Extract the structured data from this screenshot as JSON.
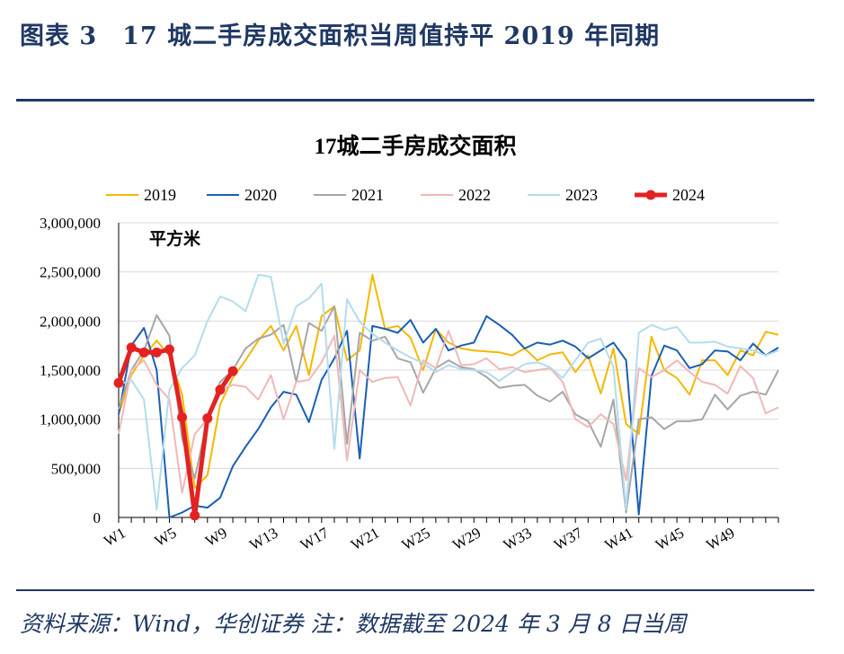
{
  "figure_title": "图表 3　17 城二手房成交面积当周值持平 2019 年同期",
  "source_note": "资料来源：Wind，华创证券 注：数据截至 2024 年 3 月 8 日当周",
  "colors": {
    "2019": "#f5b800",
    "2020": "#1a5fb4",
    "2021": "#a6a6a6",
    "2022": "#f0b8b8",
    "2023": "#b3dced",
    "2024": "#e32222",
    "frame": "#1f3864"
  },
  "chart_data": {
    "type": "line",
    "title": "17城二手房成交面积",
    "unit_label": "平方米",
    "xlabel": "",
    "ylabel": "",
    "ylim": [
      0,
      3000000
    ],
    "yticks": [
      0,
      500000,
      1000000,
      1500000,
      2000000,
      2500000,
      3000000
    ],
    "ytick_labels": [
      "0",
      "500,000",
      "1,000,000",
      "1,500,000",
      "2,000,000",
      "2,500,000",
      "3,000,000"
    ],
    "x_categories_count": 53,
    "xtick_labels": [
      "W1",
      "W5",
      "W9",
      "W13",
      "W17",
      "W21",
      "W25",
      "W29",
      "W33",
      "W37",
      "W41",
      "W45",
      "W49"
    ],
    "grid": true,
    "legend_position": "top",
    "series": [
      {
        "name": "2019",
        "color": "#f5b800",
        "width": 2,
        "values": [
          1050000,
          1450000,
          1650000,
          1800000,
          1650000,
          1250000,
          300000,
          430000,
          1150000,
          1420000,
          1600000,
          1800000,
          1950000,
          1700000,
          1950000,
          1450000,
          2050000,
          2150000,
          1600000,
          1700000,
          2470000,
          1920000,
          1950000,
          1830000,
          1500000,
          1920000,
          1780000,
          1720000,
          1700000,
          1690000,
          1680000,
          1650000,
          1720000,
          1600000,
          1660000,
          1680000,
          1480000,
          1650000,
          1260000,
          1720000,
          950000,
          850000,
          1840000,
          1500000,
          1420000,
          1250000,
          1600000,
          1600000,
          1450000,
          1700000,
          1650000,
          1890000,
          1860000
        ]
      },
      {
        "name": "2020",
        "color": "#1a5fb4",
        "width": 2,
        "values": [
          1050000,
          1750000,
          1930000,
          1500000,
          0,
          50000,
          120000,
          100000,
          200000,
          520000,
          720000,
          900000,
          1120000,
          1280000,
          1250000,
          970000,
          1400000,
          1620000,
          1900000,
          600000,
          1950000,
          1920000,
          1880000,
          2010000,
          1780000,
          1920000,
          1700000,
          1750000,
          1780000,
          2050000,
          1960000,
          1860000,
          1720000,
          1780000,
          1760000,
          1800000,
          1740000,
          1620000,
          1700000,
          1780000,
          1600000,
          30000,
          1440000,
          1750000,
          1700000,
          1520000,
          1560000,
          1700000,
          1690000,
          1600000,
          1770000,
          1650000,
          1730000
        ]
      },
      {
        "name": "2021",
        "color": "#a6a6a6",
        "width": 2,
        "values": [
          1100000,
          1500000,
          1700000,
          2060000,
          1850000,
          800000,
          400000,
          1000000,
          1380000,
          1500000,
          1720000,
          1820000,
          1860000,
          1960000,
          1380000,
          1980000,
          1900000,
          2150000,
          750000,
          1880000,
          1800000,
          1840000,
          1620000,
          1580000,
          1270000,
          1520000,
          1600000,
          1530000,
          1510000,
          1430000,
          1320000,
          1340000,
          1350000,
          1240000,
          1180000,
          1280000,
          1050000,
          980000,
          720000,
          1200000,
          50000,
          1000000,
          1020000,
          900000,
          980000,
          980000,
          1000000,
          1250000,
          1100000,
          1240000,
          1280000,
          1250000,
          1500000
        ]
      },
      {
        "name": "2022",
        "color": "#f0b8b8",
        "width": 2,
        "values": [
          850000,
          1500000,
          1600000,
          1350000,
          1200000,
          250000,
          850000,
          1000000,
          1300000,
          1350000,
          1330000,
          1200000,
          1450000,
          1000000,
          1380000,
          1400000,
          1580000,
          1850000,
          580000,
          1500000,
          1380000,
          1420000,
          1430000,
          1140000,
          1600000,
          1520000,
          1900000,
          1550000,
          1560000,
          1620000,
          1510000,
          1530000,
          1480000,
          1500000,
          1520000,
          1380000,
          1000000,
          920000,
          1050000,
          950000,
          380000,
          1520000,
          1430000,
          1500000,
          1600000,
          1480000,
          1380000,
          1350000,
          1260000,
          1540000,
          1420000,
          1060000,
          1120000
        ]
      },
      {
        "name": "2023",
        "color": "#b3dced",
        "width": 2,
        "values": [
          1350000,
          1400000,
          1200000,
          80000,
          1300000,
          1520000,
          1650000,
          2000000,
          2250000,
          2200000,
          2100000,
          2470000,
          2450000,
          1770000,
          2150000,
          2230000,
          2380000,
          700000,
          2220000,
          1990000,
          1870000,
          1780000,
          1700000,
          1630000,
          1570000,
          1480000,
          1550000,
          1510000,
          1500000,
          1480000,
          1390000,
          1480000,
          1560000,
          1580000,
          1530000,
          1420000,
          1600000,
          1780000,
          1820000,
          1530000,
          80000,
          1880000,
          1960000,
          1910000,
          1940000,
          1780000,
          1780000,
          1790000,
          1740000,
          1720000,
          1700000,
          1650000,
          1700000
        ]
      },
      {
        "name": "2024",
        "color": "#e32222",
        "width": 5,
        "marker": true,
        "values": [
          1370000,
          1730000,
          1680000,
          1680000,
          1710000,
          1020000,
          20000,
          1010000,
          1300000,
          1490000
        ]
      }
    ]
  }
}
